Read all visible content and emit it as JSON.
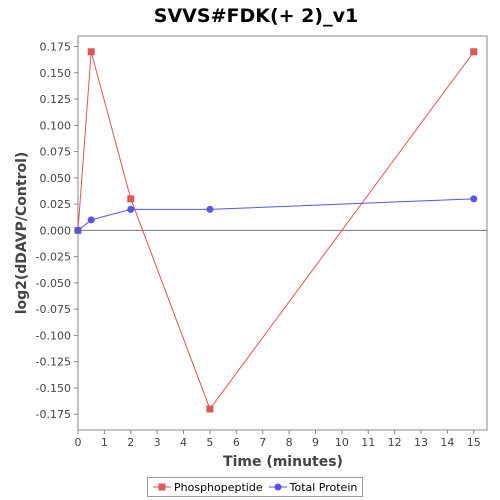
{
  "chart_data": {
    "type": "line",
    "title": "SVVS#FDK(+ 2)_v1",
    "xlabel": "Time (minutes)",
    "ylabel": "log2(dDAVP/Control)",
    "xlim": [
      0,
      15.5
    ],
    "ylim": [
      -0.19,
      0.185
    ],
    "xticks": [
      0,
      1,
      2,
      3,
      4,
      5,
      6,
      7,
      8,
      9,
      10,
      11,
      12,
      13,
      14,
      15
    ],
    "xtick_labels": [
      "0",
      "1",
      "2",
      "3",
      "4",
      "5",
      "6",
      "7",
      "8",
      "9",
      "10",
      "11",
      "12",
      "13",
      "14",
      "15"
    ],
    "yticks": [
      0.175,
      0.15,
      0.125,
      0.1,
      0.075,
      0.05,
      0.025,
      0,
      -0.025,
      -0.05,
      -0.075,
      -0.1,
      -0.125,
      -0.15,
      -0.175
    ],
    "ytick_labels": [
      "0.175",
      "0.150",
      "0.125",
      "0.100",
      "0.075",
      "0.050",
      "0.025",
      "0.000",
      "-0.025",
      "-0.050",
      "-0.075",
      "-0.100",
      "-0.125",
      "-0.150",
      "-0.175"
    ],
    "grid": false,
    "zero_line": true,
    "legend_position": "bottom",
    "series": [
      {
        "name": "Phosphopeptide",
        "color": "#e05555",
        "marker": "square",
        "x": [
          0,
          0.5,
          2,
          5,
          15
        ],
        "y": [
          0,
          0.17,
          0.03,
          -0.17,
          0.17
        ]
      },
      {
        "name": "Total Protein",
        "color": "#5555e8",
        "marker": "circle",
        "x": [
          0,
          0.5,
          2,
          5,
          15
        ],
        "y": [
          0,
          0.01,
          0.02,
          0.02,
          0.03
        ]
      }
    ]
  }
}
